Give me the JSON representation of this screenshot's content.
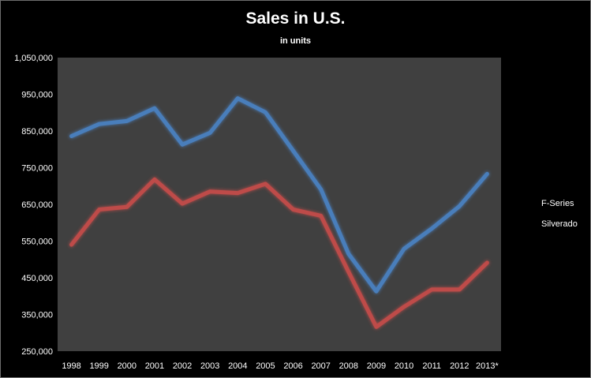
{
  "chart_data": {
    "type": "line",
    "title": "Sales in U.S.",
    "subtitle": "in units",
    "categories": [
      "1998",
      "1999",
      "2000",
      "2001",
      "2002",
      "2003",
      "2004",
      "2005",
      "2006",
      "2007",
      "2008",
      "2009",
      "2010",
      "2011",
      "2012",
      "2013*"
    ],
    "series": [
      {
        "name": "F-Series",
        "color": "#4a7ebb",
        "values": [
          836000,
          869000,
          877000,
          912000,
          813000,
          845000,
          939000,
          901000,
          796000,
          691000,
          515000,
          413000,
          529000,
          584000,
          645000,
          733000
        ]
      },
      {
        "name": "Silverado",
        "color": "#be4b48",
        "values": [
          540000,
          636000,
          643000,
          718000,
          652000,
          685000,
          681000,
          706000,
          636000,
          619000,
          466000,
          316000,
          371000,
          418000,
          418000,
          491000
        ]
      }
    ],
    "y_ticks": [
      "250,000",
      "350,000",
      "450,000",
      "550,000",
      "650,000",
      "750,000",
      "850,000",
      "950,000",
      "1,050,000"
    ],
    "ylim": [
      250000,
      1050000
    ],
    "grid": false,
    "legend_position": "right",
    "plot_background": "#404040",
    "page_background": "#000000"
  }
}
